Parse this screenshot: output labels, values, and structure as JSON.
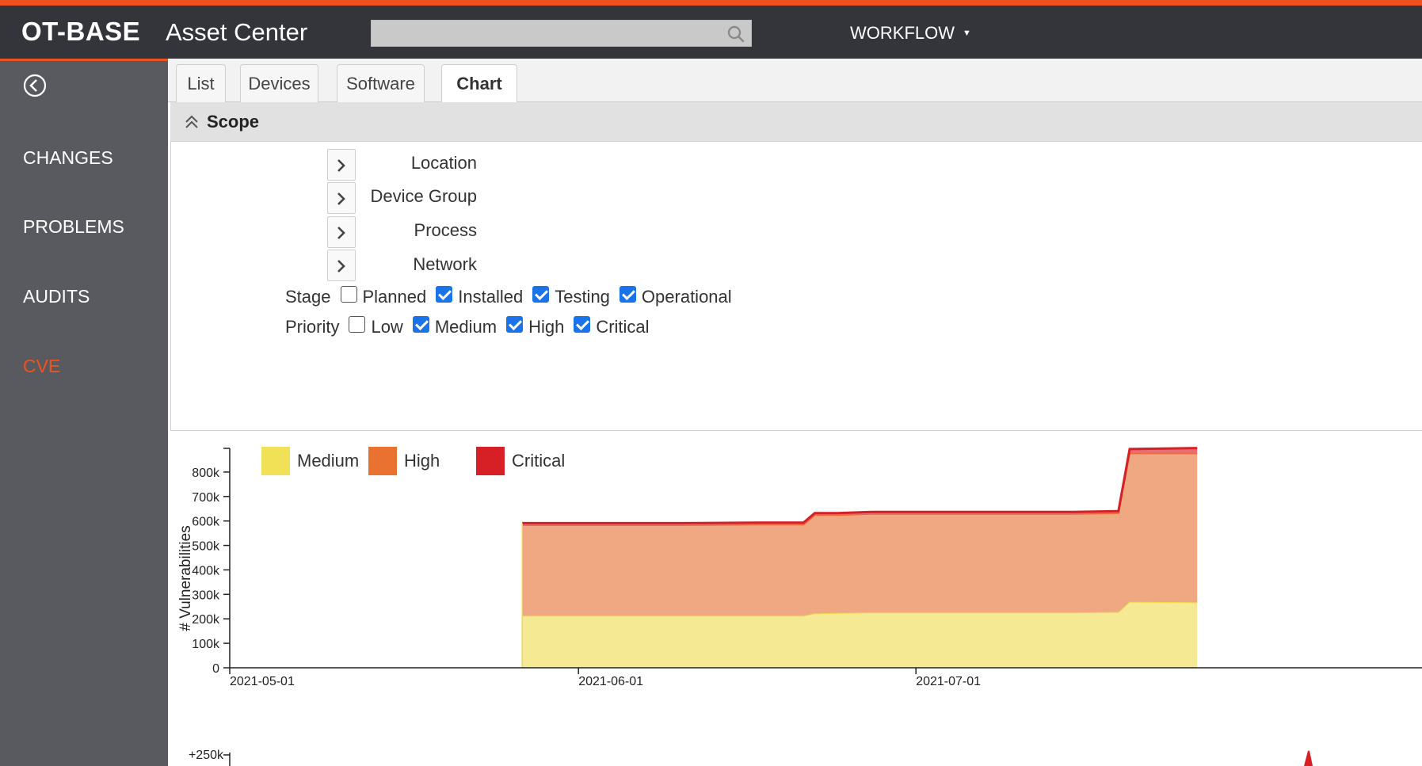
{
  "header": {
    "brand": "OT-BASE",
    "app_name": "Asset Center",
    "search_value": "",
    "workflow_label": "WORKFLOW"
  },
  "sidebar": {
    "items": [
      {
        "label": "CHANGES",
        "active": false
      },
      {
        "label": "PROBLEMS",
        "active": false
      },
      {
        "label": "AUDITS",
        "active": false
      },
      {
        "label": "CVE",
        "active": true
      }
    ]
  },
  "tabs": [
    {
      "label": "List",
      "active": false
    },
    {
      "label": "Devices",
      "active": false
    },
    {
      "label": "Software",
      "active": false
    },
    {
      "label": "Chart",
      "active": true
    }
  ],
  "scope": {
    "title": "Scope",
    "fields": [
      "Location",
      "Device Group",
      "Process",
      "Network"
    ],
    "stage": {
      "label": "Stage",
      "options": [
        {
          "label": "Planned",
          "checked": false
        },
        {
          "label": "Installed",
          "checked": true
        },
        {
          "label": "Testing",
          "checked": true
        },
        {
          "label": "Operational",
          "checked": true
        }
      ]
    },
    "priority": {
      "label": "Priority",
      "options": [
        {
          "label": "Low",
          "checked": false
        },
        {
          "label": "Medium",
          "checked": true
        },
        {
          "label": "High",
          "checked": true
        },
        {
          "label": "Critical",
          "checked": true
        }
      ]
    }
  },
  "colors": {
    "accent": "#f0521f",
    "medium": "#f5ea93",
    "high": "#f0a882",
    "critical": "#e1333a"
  },
  "chart_data": [
    {
      "type": "area",
      "stacked": true,
      "ylabel": "# Vulnerabilities",
      "xlabel": "",
      "ylim": [
        0,
        900000
      ],
      "yticks": [
        "0",
        "100k",
        "200k",
        "300k",
        "400k",
        "500k",
        "600k",
        "700k",
        "800k"
      ],
      "xticks": [
        "2021-05-01",
        "2021-06-01",
        "2021-07-01"
      ],
      "legend": [
        {
          "name": "Medium",
          "color": "#f0e157"
        },
        {
          "name": "High",
          "color": "#ea7230"
        },
        {
          "name": "Critical",
          "color": "#d71f26"
        }
      ],
      "x": [
        "2021-05-27",
        "2021-06-03",
        "2021-06-10",
        "2021-06-17",
        "2021-06-21",
        "2021-06-22",
        "2021-06-24",
        "2021-06-27",
        "2021-07-01",
        "2021-07-08",
        "2021-07-15",
        "2021-07-19",
        "2021-07-20",
        "2021-07-26"
      ],
      "series": [
        {
          "name": "Medium",
          "values": [
            213000,
            213000,
            213000,
            213000,
            213000,
            222000,
            224000,
            226000,
            226000,
            226000,
            226000,
            228000,
            270000,
            268000
          ]
        },
        {
          "name": "High",
          "values": [
            370000,
            370000,
            370000,
            372000,
            372000,
            402000,
            400000,
            403000,
            403000,
            403000,
            403000,
            404000,
            606000,
            608000
          ]
        },
        {
          "name": "Critical",
          "values": [
            8000,
            8000,
            8000,
            8000,
            8000,
            8000,
            8000,
            8000,
            8000,
            8000,
            8000,
            8000,
            18000,
            22000
          ]
        }
      ]
    },
    {
      "type": "line",
      "ylabel": "",
      "yticks": [
        "+250k"
      ]
    }
  ]
}
